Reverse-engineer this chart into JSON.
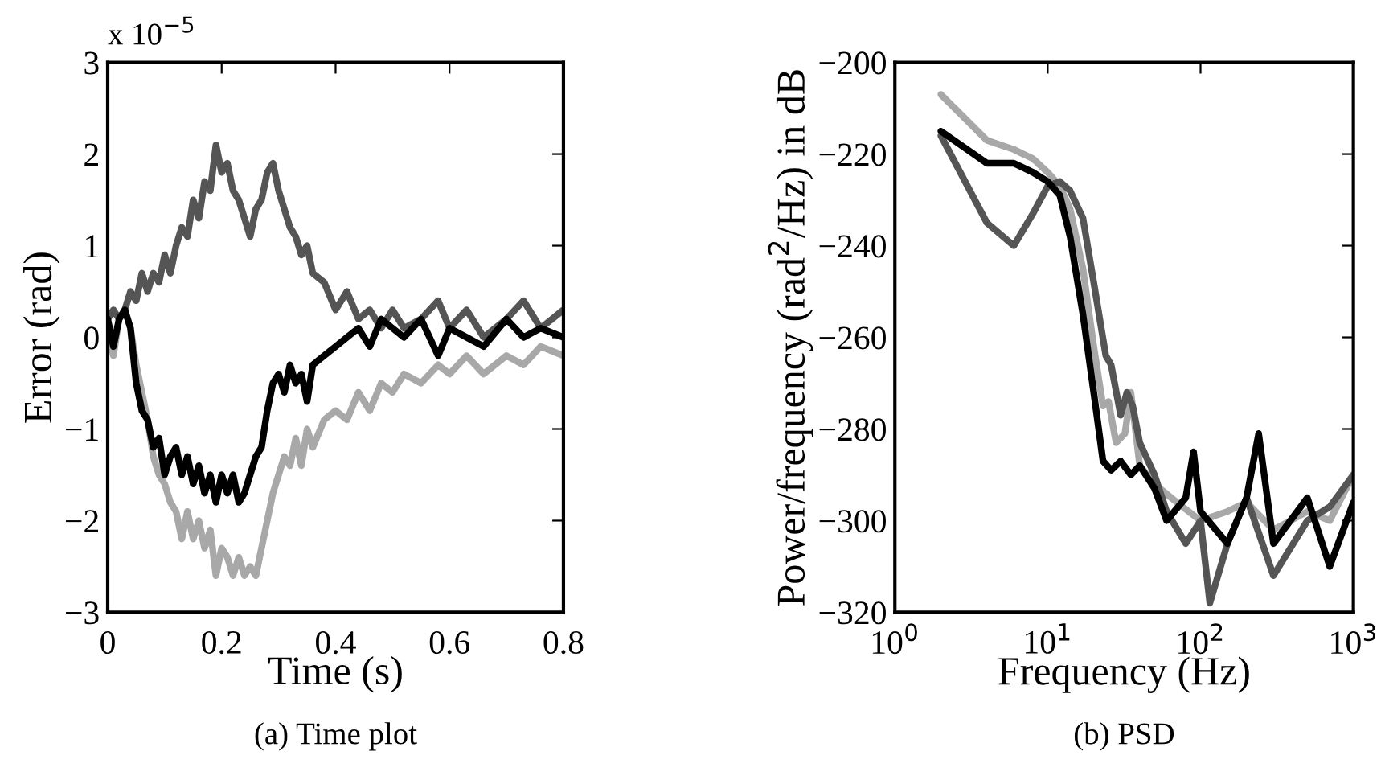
{
  "chart_data": [
    {
      "type": "line",
      "title": "(a) Time plot",
      "xlabel": "Time (s)",
      "ylabel": "Error (rad)",
      "annotations": [
        "x 10$^{−5}$"
      ],
      "xlim": [
        0,
        0.8
      ],
      "ylim": [
        -3,
        3
      ],
      "xticks": [
        0,
        0.2,
        0.4,
        0.6,
        0.8
      ],
      "yticks": [
        -3,
        -2,
        -1,
        0,
        1,
        2,
        3
      ],
      "grid": false,
      "legend": false,
      "line_style": "solid",
      "series": [
        {
          "color": "#a8a8a8",
          "x": [
            0,
            0.01,
            0.02,
            0.03,
            0.04,
            0.05,
            0.06,
            0.07,
            0.08,
            0.09,
            0.1,
            0.11,
            0.12,
            0.13,
            0.14,
            0.15,
            0.16,
            0.17,
            0.18,
            0.19,
            0.2,
            0.21,
            0.22,
            0.23,
            0.24,
            0.25,
            0.26,
            0.27,
            0.28,
            0.29,
            0.3,
            0.31,
            0.32,
            0.33,
            0.34,
            0.35,
            0.36,
            0.38,
            0.4,
            0.42,
            0.44,
            0.46,
            0.48,
            0.5,
            0.52,
            0.55,
            0.58,
            0.6,
            0.63,
            0.66,
            0.7,
            0.73,
            0.76,
            0.8
          ],
          "values": [
            0.1,
            -0.2,
            0.2,
            0.3,
            0.1,
            -0.3,
            -0.6,
            -0.9,
            -1.3,
            -1.5,
            -1.6,
            -1.8,
            -1.9,
            -2.2,
            -1.9,
            -2.2,
            -2.0,
            -2.3,
            -2.1,
            -2.6,
            -2.3,
            -2.4,
            -2.6,
            -2.4,
            -2.6,
            -2.5,
            -2.6,
            -2.3,
            -2.0,
            -1.7,
            -1.5,
            -1.3,
            -1.4,
            -1.1,
            -1.4,
            -1.0,
            -1.2,
            -0.9,
            -0.8,
            -0.9,
            -0.6,
            -0.8,
            -0.5,
            -0.6,
            -0.4,
            -0.5,
            -0.3,
            -0.4,
            -0.2,
            -0.4,
            -0.2,
            -0.3,
            -0.1,
            -0.2
          ]
        },
        {
          "color": "#555555",
          "x": [
            0,
            0.01,
            0.02,
            0.03,
            0.04,
            0.05,
            0.06,
            0.07,
            0.08,
            0.09,
            0.1,
            0.11,
            0.12,
            0.13,
            0.14,
            0.15,
            0.16,
            0.17,
            0.18,
            0.19,
            0.2,
            0.21,
            0.22,
            0.23,
            0.24,
            0.25,
            0.26,
            0.27,
            0.28,
            0.29,
            0.3,
            0.31,
            0.32,
            0.33,
            0.34,
            0.35,
            0.36,
            0.38,
            0.4,
            0.42,
            0.44,
            0.46,
            0.48,
            0.5,
            0.52,
            0.55,
            0.58,
            0.6,
            0.63,
            0.66,
            0.7,
            0.73,
            0.76,
            0.8
          ],
          "values": [
            0.2,
            0.3,
            0.2,
            0.3,
            0.5,
            0.4,
            0.7,
            0.5,
            0.7,
            0.6,
            0.9,
            0.7,
            1.0,
            1.2,
            1.1,
            1.5,
            1.3,
            1.7,
            1.6,
            2.1,
            1.8,
            1.9,
            1.6,
            1.5,
            1.3,
            1.1,
            1.4,
            1.5,
            1.8,
            1.9,
            1.6,
            1.4,
            1.2,
            1.1,
            0.9,
            1.0,
            0.7,
            0.6,
            0.3,
            0.5,
            0.2,
            0.3,
            0.1,
            0.3,
            0.1,
            0.2,
            0.4,
            0.1,
            0.3,
            0.0,
            0.2,
            0.4,
            0.1,
            0.3
          ]
        },
        {
          "color": "#000000",
          "x": [
            0,
            0.01,
            0.02,
            0.03,
            0.04,
            0.05,
            0.06,
            0.07,
            0.08,
            0.09,
            0.1,
            0.11,
            0.12,
            0.13,
            0.14,
            0.15,
            0.16,
            0.17,
            0.18,
            0.19,
            0.2,
            0.21,
            0.22,
            0.23,
            0.24,
            0.25,
            0.26,
            0.27,
            0.28,
            0.29,
            0.3,
            0.31,
            0.32,
            0.33,
            0.34,
            0.35,
            0.36,
            0.38,
            0.4,
            0.42,
            0.44,
            0.46,
            0.48,
            0.5,
            0.52,
            0.55,
            0.58,
            0.6,
            0.63,
            0.66,
            0.7,
            0.73,
            0.76,
            0.8
          ],
          "values": [
            0.2,
            -0.1,
            0.2,
            0.3,
            0.1,
            -0.5,
            -0.8,
            -0.9,
            -1.2,
            -1.1,
            -1.5,
            -1.3,
            -1.2,
            -1.5,
            -1.3,
            -1.6,
            -1.4,
            -1.7,
            -1.5,
            -1.8,
            -1.5,
            -1.7,
            -1.5,
            -1.8,
            -1.7,
            -1.5,
            -1.3,
            -1.2,
            -0.8,
            -0.5,
            -0.4,
            -0.6,
            -0.3,
            -0.5,
            -0.4,
            -0.7,
            -0.3,
            -0.2,
            -0.1,
            0.0,
            0.1,
            -0.1,
            0.2,
            0.1,
            0.0,
            0.2,
            -0.2,
            0.1,
            0.0,
            -0.1,
            0.2,
            0.0,
            0.1,
            0.0
          ]
        }
      ]
    },
    {
      "type": "line",
      "title": "(b) PSD",
      "xlabel": "Frequency (Hz)",
      "ylabel": "Power/frequency (rad$^{2}$/Hz) in dB",
      "log": "x",
      "xlim": [
        1,
        1000
      ],
      "ylim": [
        -320,
        -200
      ],
      "xticks": [
        {
          "value": 1,
          "label": "10$^{0}$"
        },
        {
          "value": 10,
          "label": "10$^{1}$"
        },
        {
          "value": 100,
          "label": "10$^{2}$"
        },
        {
          "value": 1000,
          "label": "10$^{3}$"
        }
      ],
      "yticks": [
        -320,
        -300,
        -280,
        -260,
        -240,
        -220,
        -200
      ],
      "grid": false,
      "legend": false,
      "line_style": "solid",
      "series": [
        {
          "color": "#a8a8a8",
          "x": [
            2,
            4,
            6,
            8,
            10,
            12,
            14,
            17,
            20,
            23,
            25,
            28,
            32,
            35,
            40,
            50,
            70,
            100,
            150,
            200,
            300,
            500,
            700,
            1000
          ],
          "values": [
            -207,
            -217,
            -219,
            -221,
            -224,
            -227,
            -232,
            -245,
            -262,
            -275,
            -274,
            -283,
            -281,
            -272,
            -288,
            -292,
            -296,
            -300,
            -298,
            -296,
            -302,
            -298,
            -300,
            -290
          ]
        },
        {
          "color": "#555555",
          "x": [
            2,
            4,
            6,
            8,
            10,
            12,
            14,
            17,
            20,
            24,
            26,
            30,
            33,
            36,
            40,
            50,
            60,
            80,
            100,
            115,
            150,
            200,
            300,
            500,
            700,
            1000
          ],
          "values": [
            -216,
            -235,
            -240,
            -233,
            -227,
            -226,
            -228,
            -234,
            -248,
            -264,
            -266,
            -277,
            -272,
            -275,
            -283,
            -290,
            -298,
            -305,
            -300,
            -318,
            -305,
            -295,
            -312,
            -300,
            -297,
            -290
          ]
        },
        {
          "color": "#000000",
          "x": [
            2,
            4,
            6,
            8,
            10,
            12,
            14,
            17,
            20,
            23,
            26,
            30,
            35,
            40,
            50,
            60,
            80,
            90,
            100,
            150,
            200,
            240,
            300,
            500,
            700,
            1000
          ],
          "values": [
            -215,
            -222,
            -222,
            -224,
            -226,
            -229,
            -238,
            -255,
            -272,
            -287,
            -289,
            -287,
            -290,
            -288,
            -293,
            -300,
            -295,
            -285,
            -298,
            -305,
            -295,
            -281,
            -305,
            -295,
            -310,
            -296
          ]
        }
      ]
    }
  ]
}
